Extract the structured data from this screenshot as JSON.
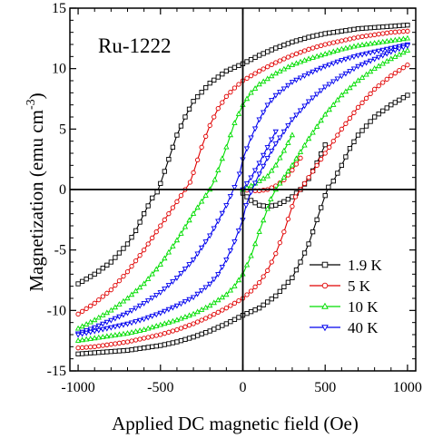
{
  "chart_data": {
    "type": "line",
    "title": "",
    "annotation": "Ru-1222",
    "xlabel": "Applied DC magnetic field (Oe)",
    "ylabel_main": "Magnetization (emu cm",
    "ylabel_sup": "-3",
    "ylabel_close": ")",
    "xlim": [
      -1050,
      1050
    ],
    "ylim": [
      -15,
      15
    ],
    "xticks": [
      -1000,
      -500,
      0,
      500,
      1000
    ],
    "yticks": [
      -15,
      -10,
      -5,
      0,
      5,
      10,
      15
    ],
    "grid": false,
    "legend_position": "lower-right",
    "zero_lines": true,
    "series": [
      {
        "name": "1.9 K",
        "color": "#000000",
        "marker": "square",
        "upper_branch": {
          "x": [
            -1000,
            -900,
            -800,
            -700,
            -650,
            -600,
            -550,
            -520,
            -500,
            -450,
            -400,
            -350,
            -300,
            -200,
            -100,
            0,
            100,
            200,
            300,
            400,
            500,
            600,
            700,
            800,
            900,
            1000
          ],
          "y": [
            -7.8,
            -7.0,
            -6.0,
            -4.5,
            -3.4,
            -2.0,
            -0.7,
            -0.2,
            0.5,
            2.5,
            4.5,
            6.0,
            7.3,
            8.8,
            9.8,
            10.4,
            11.1,
            11.7,
            12.2,
            12.6,
            12.9,
            13.1,
            13.3,
            13.4,
            13.5,
            13.6
          ]
        },
        "lower_branch": {
          "x": [
            1000,
            900,
            800,
            700,
            650,
            600,
            550,
            520,
            500,
            450,
            400,
            350,
            300,
            200,
            100,
            0,
            -100,
            -200,
            -300,
            -400,
            -500,
            -600,
            -700,
            -800,
            -900,
            -1000
          ],
          "y": [
            7.8,
            7.0,
            6.0,
            4.5,
            3.4,
            2.0,
            0.7,
            0.2,
            -0.5,
            -2.5,
            -4.5,
            -6.0,
            -7.3,
            -8.8,
            -9.8,
            -10.4,
            -11.1,
            -11.7,
            -12.2,
            -12.6,
            -12.9,
            -13.1,
            -13.3,
            -13.4,
            -13.5,
            -13.6
          ]
        },
        "virgin": {
          "x": [
            0,
            50,
            100,
            150,
            200,
            250,
            300,
            350,
            400,
            450,
            500
          ],
          "y": [
            -0.3,
            -0.9,
            -1.3,
            -1.4,
            -1.3,
            -1.0,
            -0.6,
            0.0,
            0.9,
            2.2,
            3.7
          ]
        }
      },
      {
        "name": "5 K",
        "color": "#e00000",
        "marker": "circle",
        "upper_branch": {
          "x": [
            -1000,
            -900,
            -800,
            -700,
            -600,
            -500,
            -450,
            -400,
            -350,
            -320,
            -300,
            -250,
            -200,
            -150,
            -100,
            -50,
            0,
            100,
            200,
            300,
            400,
            500,
            600,
            700,
            800,
            900,
            1000
          ],
          "y": [
            -10.3,
            -9.4,
            -8.3,
            -6.8,
            -5.0,
            -3.0,
            -2.0,
            -1.0,
            0.0,
            0.6,
            1.4,
            3.5,
            5.3,
            6.7,
            7.7,
            8.4,
            9.0,
            9.8,
            10.5,
            11.1,
            11.6,
            12.0,
            12.3,
            12.6,
            12.8,
            13.0,
            13.1
          ]
        },
        "lower_branch": {
          "x": [
            1000,
            900,
            800,
            700,
            600,
            500,
            450,
            400,
            350,
            320,
            300,
            250,
            200,
            150,
            100,
            50,
            0,
            -100,
            -200,
            -300,
            -400,
            -500,
            -600,
            -700,
            -800,
            -900,
            -1000
          ],
          "y": [
            10.3,
            9.4,
            8.3,
            6.8,
            5.0,
            3.0,
            2.0,
            1.0,
            0.0,
            -0.6,
            -1.4,
            -3.5,
            -5.3,
            -6.7,
            -7.7,
            -8.4,
            -9.0,
            -9.8,
            -10.5,
            -11.1,
            -11.6,
            -12.0,
            -12.3,
            -12.6,
            -12.8,
            -13.0,
            -13.1
          ]
        },
        "virgin": {
          "x": [
            0,
            50,
            100,
            150,
            200,
            250,
            300,
            350
          ],
          "y": [
            0.0,
            -0.1,
            -0.1,
            0.0,
            0.3,
            0.8,
            1.6,
            2.6
          ]
        }
      },
      {
        "name": "10 K",
        "color": "#00dd00",
        "marker": "triangle-up",
        "upper_branch": {
          "x": [
            -1000,
            -900,
            -800,
            -700,
            -600,
            -500,
            -400,
            -300,
            -250,
            -200,
            -170,
            -150,
            -100,
            -50,
            0,
            50,
            100,
            200,
            300,
            400,
            500,
            600,
            700,
            800,
            900,
            1000
          ],
          "y": [
            -11.5,
            -10.8,
            -10.0,
            -9.0,
            -7.8,
            -6.2,
            -4.2,
            -2.0,
            -1.0,
            0.0,
            0.8,
            1.6,
            3.5,
            5.5,
            7.0,
            8.0,
            8.7,
            9.6,
            10.3,
            10.8,
            11.2,
            11.6,
            11.9,
            12.1,
            12.3,
            12.5
          ]
        },
        "lower_branch": {
          "x": [
            1000,
            900,
            800,
            700,
            600,
            500,
            400,
            300,
            250,
            200,
            170,
            150,
            100,
            50,
            0,
            -50,
            -100,
            -200,
            -300,
            -400,
            -500,
            -600,
            -700,
            -800,
            -900,
            -1000
          ],
          "y": [
            11.5,
            10.8,
            10.0,
            9.0,
            7.8,
            6.2,
            4.2,
            2.0,
            1.0,
            0.0,
            -0.8,
            -1.6,
            -3.5,
            -5.5,
            -7.0,
            -8.0,
            -8.7,
            -9.6,
            -10.3,
            -10.8,
            -11.2,
            -11.6,
            -11.9,
            -12.1,
            -12.3,
            -12.5
          ]
        },
        "virgin": {
          "x": [
            0,
            50,
            100,
            150,
            200,
            250,
            300
          ],
          "y": [
            0.0,
            0.3,
            0.7,
            1.1,
            2.0,
            3.2,
            4.5
          ]
        }
      },
      {
        "name": "40 K",
        "color": "#0000ee",
        "marker": "triangle-down",
        "upper_branch": {
          "x": [
            -1000,
            -900,
            -800,
            -700,
            -600,
            -500,
            -400,
            -300,
            -200,
            -150,
            -100,
            -50,
            -20,
            0,
            50,
            100,
            150,
            200,
            300,
            400,
            500,
            600,
            700,
            800,
            900,
            1000
          ],
          "y": [
            -11.9,
            -11.4,
            -10.8,
            -10.2,
            -9.4,
            -8.5,
            -7.3,
            -5.8,
            -3.8,
            -2.6,
            -1.3,
            0.2,
            1.3,
            2.5,
            4.3,
            5.8,
            7.0,
            7.8,
            8.9,
            9.6,
            10.2,
            10.7,
            11.1,
            11.4,
            11.7,
            12.0
          ]
        },
        "lower_branch": {
          "x": [
            1000,
            900,
            800,
            700,
            600,
            500,
            400,
            300,
            200,
            150,
            100,
            50,
            20,
            0,
            -50,
            -100,
            -150,
            -200,
            -300,
            -400,
            -500,
            -600,
            -700,
            -800,
            -900,
            -1000
          ],
          "y": [
            11.9,
            11.4,
            10.8,
            10.2,
            9.4,
            8.5,
            7.3,
            5.8,
            3.8,
            2.6,
            1.3,
            -0.2,
            -1.3,
            -2.5,
            -4.3,
            -5.8,
            -7.0,
            -7.8,
            -8.9,
            -9.6,
            -10.2,
            -10.7,
            -11.1,
            -11.4,
            -11.7,
            -12.0
          ]
        },
        "virgin": {
          "x": [
            0,
            50,
            100,
            150,
            200
          ],
          "y": [
            0.0,
            1.0,
            2.2,
            3.5,
            4.8
          ]
        }
      }
    ]
  }
}
